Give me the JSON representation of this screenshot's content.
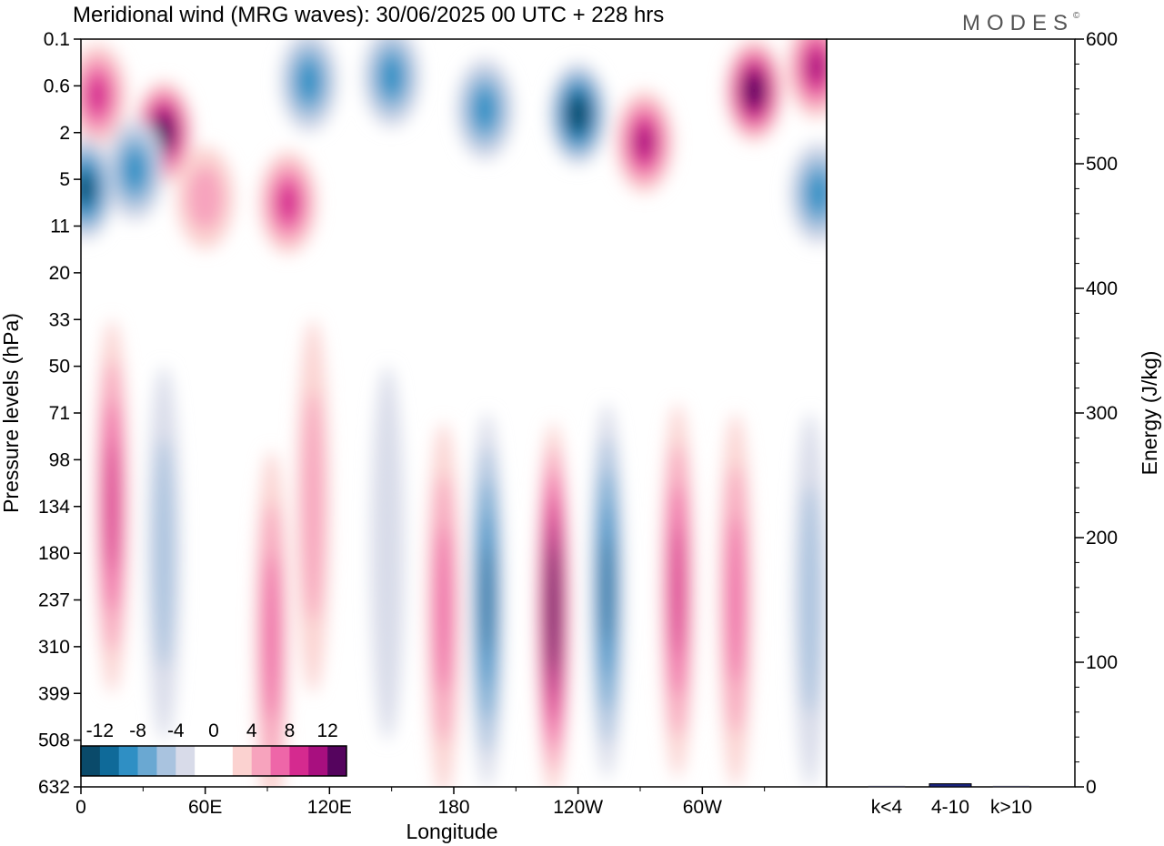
{
  "header": {
    "title": "Meridional wind (MRG waves):  30/06/2025  00 UTC  + 228 hrs",
    "logo_text": "MODES",
    "logo_mark": "©"
  },
  "colors": {
    "neg": [
      "#0a4a6a",
      "#0f6a99",
      "#2f8fc4",
      "#6aa8d2",
      "#a9c3df",
      "#d8dbe9"
    ],
    "zero": "#ffffff",
    "pos": [
      "#fbd2d0",
      "#f7a3bd",
      "#ee66a8",
      "#d52a8f",
      "#a80f7f",
      "#55045e"
    ],
    "energy_bar": "#1a237e"
  },
  "chart_data": [
    {
      "type": "heatmap",
      "name": "meridional-wind-contours",
      "xlabel": "Longitude",
      "ylabel": "Pressure levels (hPa)",
      "x_ticks": [
        "0",
        "60E",
        "120E",
        "180",
        "120W",
        "60W"
      ],
      "x_tick_values": [
        0,
        60,
        120,
        180,
        240,
        300
      ],
      "xlim": [
        0,
        360
      ],
      "y_ticks": [
        "0.1",
        "0.6",
        "2",
        "5",
        "11",
        "20",
        "33",
        "50",
        "71",
        "98",
        "134",
        "180",
        "237",
        "310",
        "399",
        "508",
        "632"
      ],
      "colorbar": {
        "labels": [
          "-12",
          "-8",
          "-4",
          "0",
          "4",
          "8",
          "12"
        ],
        "levels": [
          -12,
          -10,
          -8,
          -6,
          -4,
          -2,
          0,
          2,
          4,
          6,
          8,
          10,
          12
        ]
      },
      "features": [
        {
          "lon": 8,
          "level": 1.2,
          "value": 7
        },
        {
          "lon": 40,
          "level": 2.0,
          "value": 14
        },
        {
          "lon": 26,
          "level": 2.8,
          "value": -8
        },
        {
          "lon": 2,
          "level": 3.2,
          "value": -12
        },
        {
          "lon": 60,
          "level": 3.4,
          "value": 3
        },
        {
          "lon": 100,
          "level": 3.5,
          "value": 7
        },
        {
          "lon": 110,
          "level": 0.9,
          "value": -8
        },
        {
          "lon": 150,
          "level": 0.8,
          "value": -8
        },
        {
          "lon": 195,
          "level": 1.5,
          "value": -8
        },
        {
          "lon": 240,
          "level": 1.6,
          "value": -14
        },
        {
          "lon": 272,
          "level": 2.2,
          "value": 10
        },
        {
          "lon": 325,
          "level": 1.1,
          "value": 13
        },
        {
          "lon": 355,
          "level": 0.6,
          "value": 10
        },
        {
          "lon": 356,
          "level": 3.3,
          "value": -8
        },
        {
          "lon": 15,
          "level": 10,
          "value": 7
        },
        {
          "lon": 40,
          "level": 11,
          "value": -4
        },
        {
          "lon": 92,
          "level": 12.8,
          "value": 5
        },
        {
          "lon": 112,
          "level": 10,
          "value": 4
        },
        {
          "lon": 148,
          "level": 11,
          "value": -2
        },
        {
          "lon": 175,
          "level": 12.2,
          "value": 5
        },
        {
          "lon": 196,
          "level": 12,
          "value": -10
        },
        {
          "lon": 228,
          "level": 12.2,
          "value": 14
        },
        {
          "lon": 254,
          "level": 11.8,
          "value": -10
        },
        {
          "lon": 288,
          "level": 11.8,
          "value": 7
        },
        {
          "lon": 316,
          "level": 12,
          "value": 6
        },
        {
          "lon": 352,
          "level": 12,
          "value": -4
        }
      ]
    },
    {
      "type": "bar",
      "name": "energy-panel",
      "ylabel": "Energy (J/kg)",
      "categories": [
        "k<4",
        "4-10",
        "k>10"
      ],
      "values": [
        0.5,
        2.5,
        0.3
      ],
      "ylim": [
        0,
        600
      ],
      "y_ticks": [
        "0",
        "100",
        "200",
        "300",
        "400",
        "500",
        "600"
      ]
    }
  ]
}
